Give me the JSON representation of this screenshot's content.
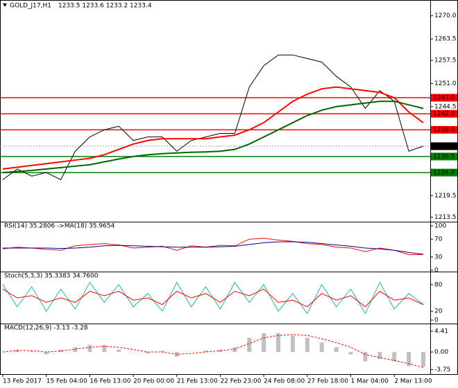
{
  "chart_data": [
    {
      "type": "line",
      "title": "GOLD_J17,H1",
      "subtitle": "1233.5 1233.6 1233.2 1233.4",
      "categories": [
        "13 Feb 2017",
        null,
        null,
        "15 Feb 04:00",
        null,
        null,
        "16 Feb 13:00",
        null,
        null,
        "20 Feb 00:00",
        null,
        null,
        "21 Feb 13:00",
        null,
        null,
        "22 Feb 23:00",
        null,
        null,
        "24 Feb 08:00",
        null,
        null,
        "27 Feb 18:00",
        null,
        null,
        "1 Mar 04:00",
        null,
        null,
        "2 Mar 13:00",
        null,
        null
      ],
      "series": [
        {
          "color": "#000000",
          "values": [
            1224,
            1227,
            1225,
            1226,
            1224,
            1232,
            1236,
            1238,
            1239,
            1235,
            1236,
            1236,
            1232,
            1235,
            1236,
            1237,
            1237,
            1250,
            1256,
            1259,
            1259,
            1258,
            1257,
            1253,
            1250,
            1244,
            1249,
            1246,
            1232,
            1233.4
          ]
        },
        {
          "color": "#ff0000",
          "values": [
            1227,
            1227.5,
            1228,
            1228.5,
            1229,
            1229.5,
            1230,
            1231,
            1232.5,
            1234,
            1235,
            1235.5,
            1235.5,
            1235.5,
            1235.5,
            1236,
            1236.5,
            1238,
            1240,
            1243,
            1246,
            1248,
            1249.5,
            1250,
            1249.5,
            1249,
            1248.5,
            1247,
            1243,
            1240
          ]
        },
        {
          "color": "#006400",
          "values": [
            1226,
            1226.3,
            1226.6,
            1227,
            1227.4,
            1227.8,
            1228.2,
            1229,
            1229.8,
            1230.5,
            1231,
            1231.3,
            1231.5,
            1231.7,
            1231.8,
            1232,
            1232.5,
            1234,
            1236,
            1238,
            1240,
            1242,
            1243.5,
            1244.5,
            1245,
            1245.5,
            1246,
            1246,
            1245,
            1244
          ]
        }
      ],
      "levels": [
        {
          "value": 1247.0,
          "label": "1247.0",
          "color": "#ff0000"
        },
        {
          "value": 1242.5,
          "label": "1242.5",
          "color": "#ff0000"
        },
        {
          "value": 1238.0,
          "label": "1238.0",
          "color": "#ff0000"
        },
        {
          "value": 1230.5,
          "label": "1230.5",
          "color": "#008000"
        },
        {
          "value": 1226.0,
          "label": "1226.0",
          "color": "#008000"
        }
      ],
      "last_price": 1233.4,
      "ylim": [
        1212.6,
        1271.7
      ],
      "yticks": [
        {
          "value": 1270.0,
          "label": "1270.0"
        },
        1263.5,
        1257.5,
        {
          "value": 1251.0,
          "label": "1251.0"
        },
        1244.5,
        {
          "value": 1238.0,
          "label": "1238.0"
        },
        1219.5,
        1213.5
      ]
    },
    {
      "type": "line",
      "title": "RSI(14) 35.2806  ->MA(18) 35.9654",
      "series": [
        {
          "color": "#ff0000",
          "values": [
            48,
            52,
            50,
            47,
            45,
            55,
            58,
            60,
            57,
            50,
            52,
            54,
            45,
            55,
            52,
            56,
            55,
            70,
            72,
            68,
            65,
            60,
            58,
            52,
            50,
            42,
            50,
            45,
            35,
            35.2806
          ]
        },
        {
          "color": "#00008b",
          "values": [
            50,
            50,
            50,
            50,
            49,
            50,
            52,
            55,
            56,
            55,
            54,
            53,
            52,
            52,
            52,
            53,
            54,
            58,
            62,
            64,
            64,
            63,
            60,
            57,
            54,
            50,
            48,
            45,
            40,
            35.9654
          ]
        }
      ],
      "ylim": [
        0,
        100
      ],
      "yticks": [
        100,
        70,
        30,
        0
      ]
    },
    {
      "type": "line",
      "title": "Stoch(5,3,3) 35.3383 34.7600",
      "series": [
        {
          "color": "#20b2aa",
          "values": [
            80,
            30,
            75,
            20,
            70,
            25,
            85,
            40,
            80,
            30,
            60,
            20,
            85,
            30,
            75,
            25,
            85,
            40,
            80,
            20,
            60,
            15,
            80,
            30,
            70,
            15,
            85,
            25,
            60,
            35.3383
          ]
        },
        {
          "color": "#ff0000",
          "values": [
            70,
            50,
            55,
            40,
            50,
            40,
            65,
            55,
            65,
            45,
            50,
            35,
            65,
            50,
            60,
            40,
            65,
            55,
            70,
            40,
            45,
            30,
            60,
            45,
            55,
            30,
            65,
            45,
            50,
            34.76
          ]
        }
      ],
      "ylim": [
        0,
        100
      ],
      "yticks": [
        80,
        20,
        0
      ]
    },
    {
      "type": "bar",
      "title": "MACD(12,26,9) -3.13 -3.28",
      "color": "#c0c0c0",
      "values": [
        0,
        0.5,
        0.2,
        -0.5,
        0.5,
        1,
        1.5,
        1.5,
        0.5,
        0,
        -0.3,
        0.2,
        -1,
        0,
        0.3,
        0.5,
        1,
        3,
        4,
        4,
        3.5,
        3,
        2,
        1,
        -0.5,
        -2,
        -1.5,
        -2,
        -3,
        -3.13
      ],
      "series": [
        {
          "color": "#ff0000",
          "values": [
            0,
            0.3,
            0.3,
            0,
            0.2,
            0.6,
            1,
            1.2,
            1,
            0.5,
            0,
            0,
            -0.5,
            -0.3,
            0,
            0.3,
            0.6,
            1.8,
            3,
            3.5,
            3.7,
            3.5,
            2.8,
            2,
            1,
            -0.5,
            -1.2,
            -1.8,
            -2.5,
            -3.28
          ]
        }
      ],
      "ylim": [
        -4.26,
        5.15
      ],
      "yticks": [
        4.41,
        {
          "value": 0,
          "label": "0.00"
        },
        -3.75
      ]
    }
  ]
}
